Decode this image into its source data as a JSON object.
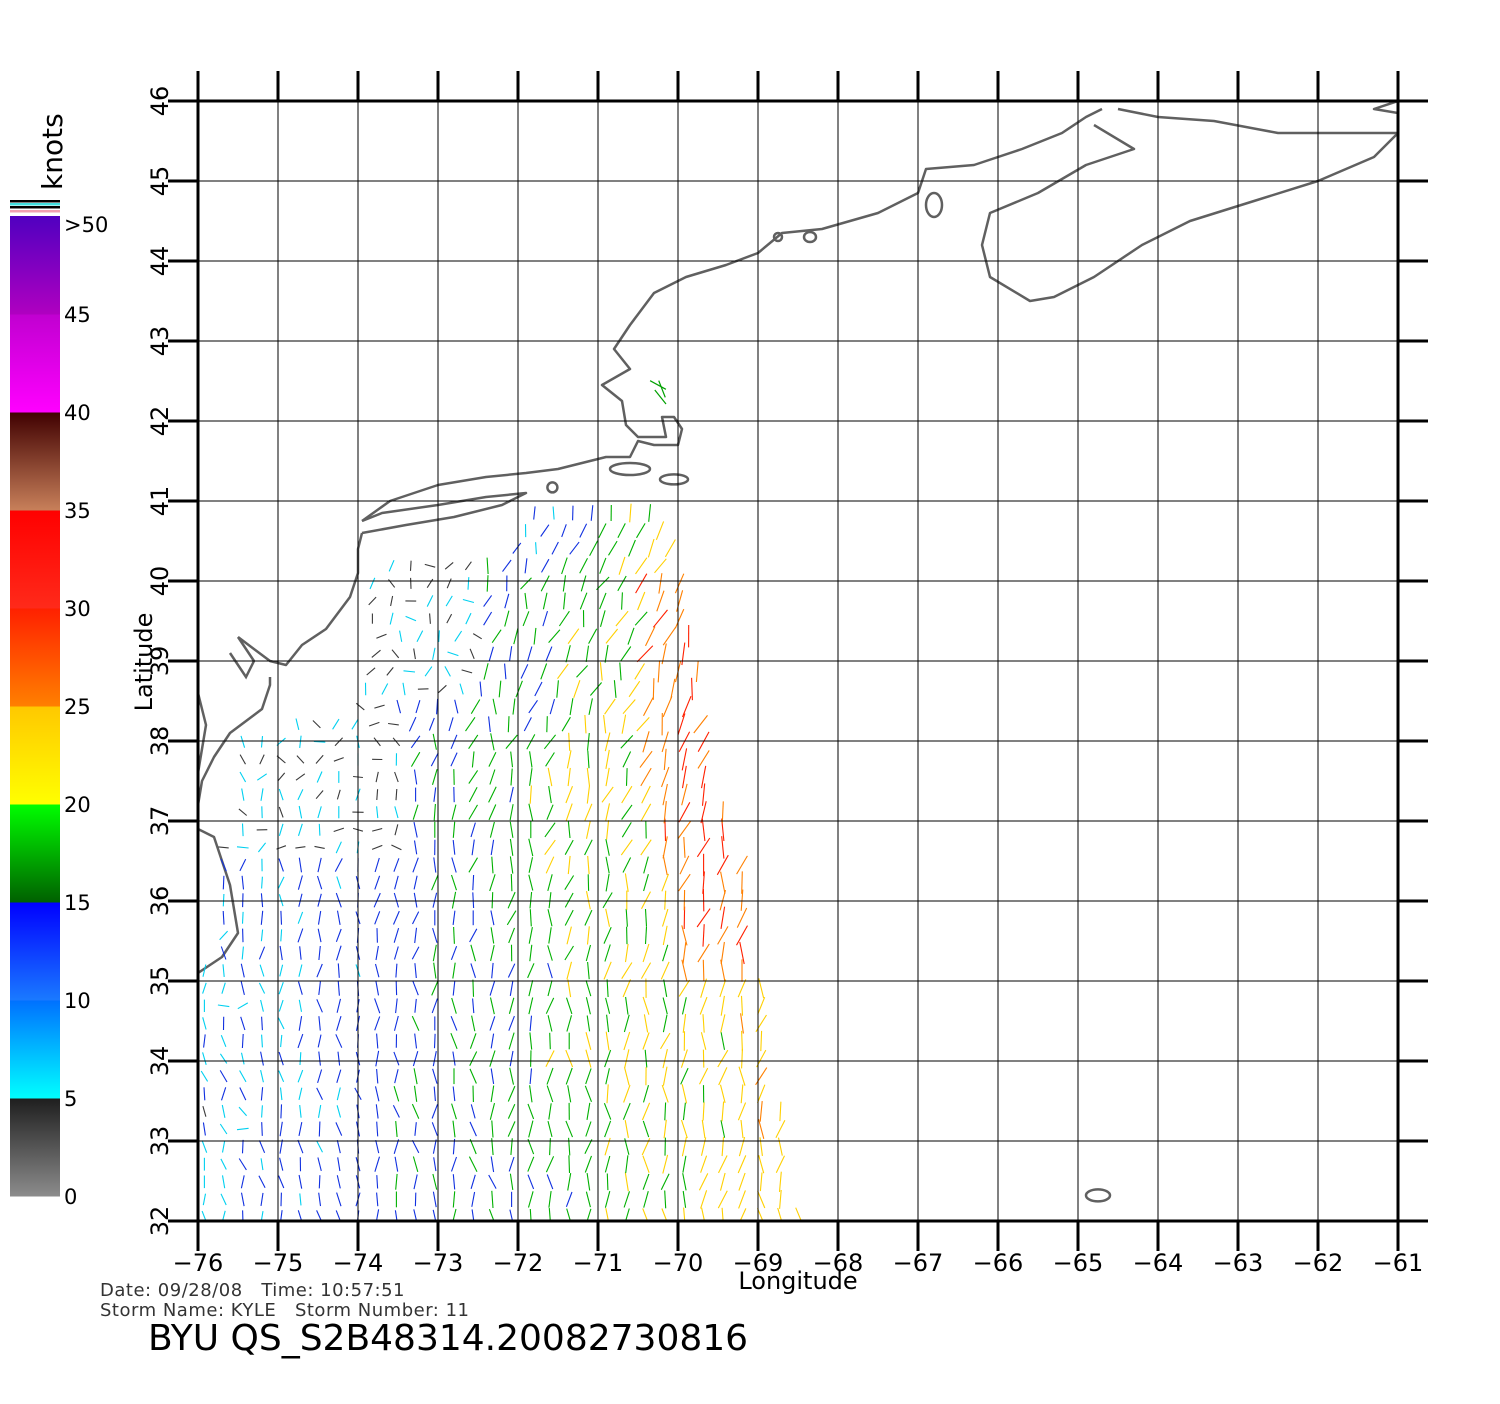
{
  "map": {
    "x_label": "Longitude",
    "y_label": "Latitude",
    "lon_range": [
      -76,
      -61
    ],
    "lat_range": [
      32,
      46
    ],
    "lon_ticks": [
      -76,
      -75,
      -74,
      -73,
      -72,
      -71,
      -70,
      -69,
      -68,
      -67,
      -66,
      -65,
      -64,
      -63,
      -62,
      -61
    ],
    "lat_ticks": [
      32,
      33,
      34,
      35,
      36,
      37,
      38,
      39,
      40,
      41,
      42,
      43,
      44,
      45,
      46
    ],
    "grid": true,
    "coast_color": "#606060"
  },
  "colorbar": {
    "unit": "knots",
    "labels": [
      "0",
      "5",
      "10",
      "15",
      "20",
      "25",
      "30",
      "35",
      "40",
      "45",
      ">50"
    ],
    "segments": [
      {
        "from": 0,
        "to": 5,
        "colors": [
          "#8c8c8c",
          "#1e1e1e"
        ]
      },
      {
        "from": 5,
        "to": 10,
        "colors": [
          "#00ffff",
          "#0070ff"
        ]
      },
      {
        "from": 10,
        "to": 15,
        "colors": [
          "#1a7aff",
          "#0000ff"
        ]
      },
      {
        "from": 15,
        "to": 20,
        "colors": [
          "#006000",
          "#00ff00"
        ]
      },
      {
        "from": 20,
        "to": 25,
        "colors": [
          "#ffff00",
          "#ffc800"
        ]
      },
      {
        "from": 25,
        "to": 30,
        "colors": [
          "#ff8000",
          "#ff2000"
        ]
      },
      {
        "from": 30,
        "to": 35,
        "colors": [
          "#ff2a1a",
          "#ff0000"
        ]
      },
      {
        "from": 35,
        "to": 40,
        "colors": [
          "#c8805a",
          "#400000"
        ]
      },
      {
        "from": 40,
        "to": 45,
        "colors": [
          "#ff00ff",
          "#c000d0"
        ]
      },
      {
        "from": 45,
        "to": 50,
        "colors": [
          "#b000c0",
          "#5000c0"
        ]
      }
    ]
  },
  "footer": {
    "date_line": "Date: 09/28/08   Time: 10:57:51",
    "storm_line": "Storm Name: KYLE   Storm Number: 11",
    "product": "BYU QS_S2B48314.20082730816"
  },
  "swath": {
    "bottom": [
      [
        -76.0,
        32.0
      ],
      [
        -68.4,
        32.0
      ]
    ],
    "top": [
      [
        -72.0,
        40.8
      ],
      [
        -70.1,
        41.0
      ]
    ],
    "right_edge": [
      [
        -68.4,
        32.0
      ],
      [
        -68.6,
        33.0
      ],
      [
        -68.9,
        35.0
      ],
      [
        -69.0,
        36.0
      ],
      [
        -69.3,
        37.0
      ],
      [
        -69.6,
        38.0
      ],
      [
        -69.7,
        39.0
      ],
      [
        -70.1,
        41.0
      ]
    ]
  }
}
